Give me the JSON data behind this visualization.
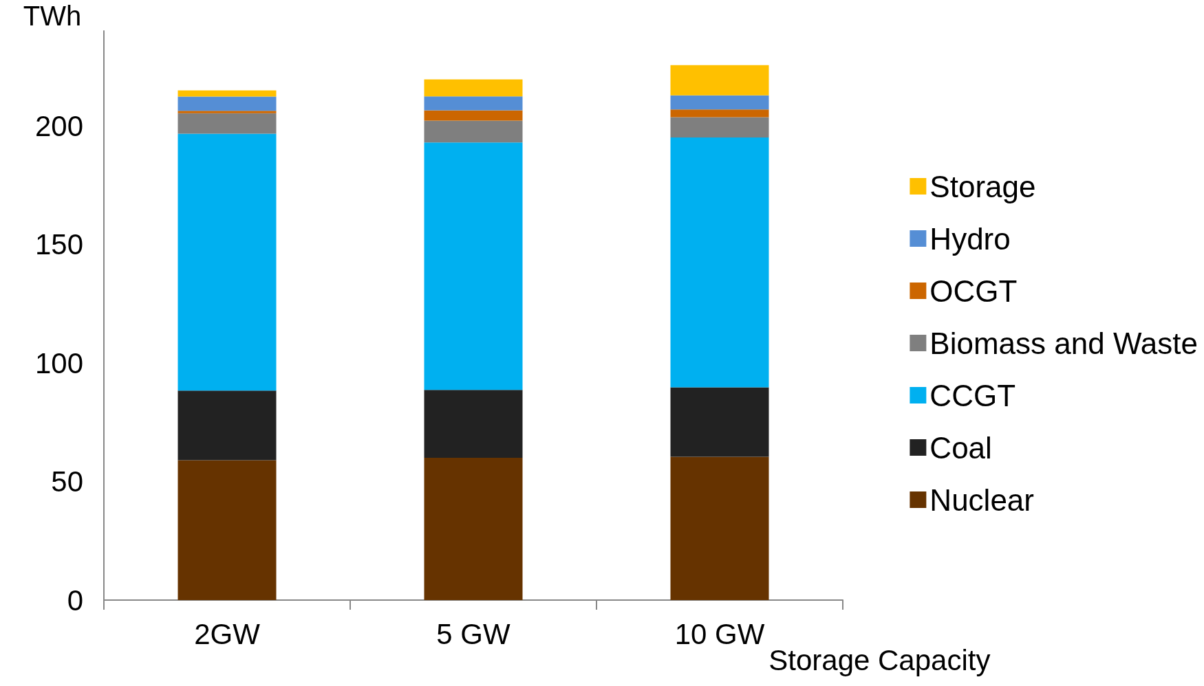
{
  "chart_data": {
    "type": "bar",
    "stacked": true,
    "ylabel": "TWh",
    "xlabel": "Storage Capacity",
    "categories": [
      "2GW",
      "5 GW",
      "10 GW"
    ],
    "series": [
      {
        "name": "Nuclear",
        "color": "#663300",
        "values": [
          59,
          60,
          60.4
        ]
      },
      {
        "name": "Coal",
        "color": "#222222",
        "values": [
          29.3,
          28.6,
          29.3
        ]
      },
      {
        "name": "CCGT",
        "color": "#00b0f0",
        "values": [
          108.4,
          104.4,
          105.4
        ]
      },
      {
        "name": "Biomass and Waste",
        "color": "#7f7f7f",
        "values": [
          8.6,
          9.2,
          8.5
        ]
      },
      {
        "name": "OCGT",
        "color": "#cc6600",
        "values": [
          1,
          4.3,
          3.3
        ]
      },
      {
        "name": "Hydro",
        "color": "#558ed5",
        "values": [
          6,
          5.9,
          5.9
        ]
      },
      {
        "name": "Storage",
        "color": "#ffc000",
        "values": [
          2.6,
          7.2,
          12.8
        ]
      }
    ],
    "ylim": [
      0,
      240
    ],
    "yticks": [
      0,
      50,
      100,
      150,
      200
    ],
    "grid": false,
    "legend": "right"
  }
}
